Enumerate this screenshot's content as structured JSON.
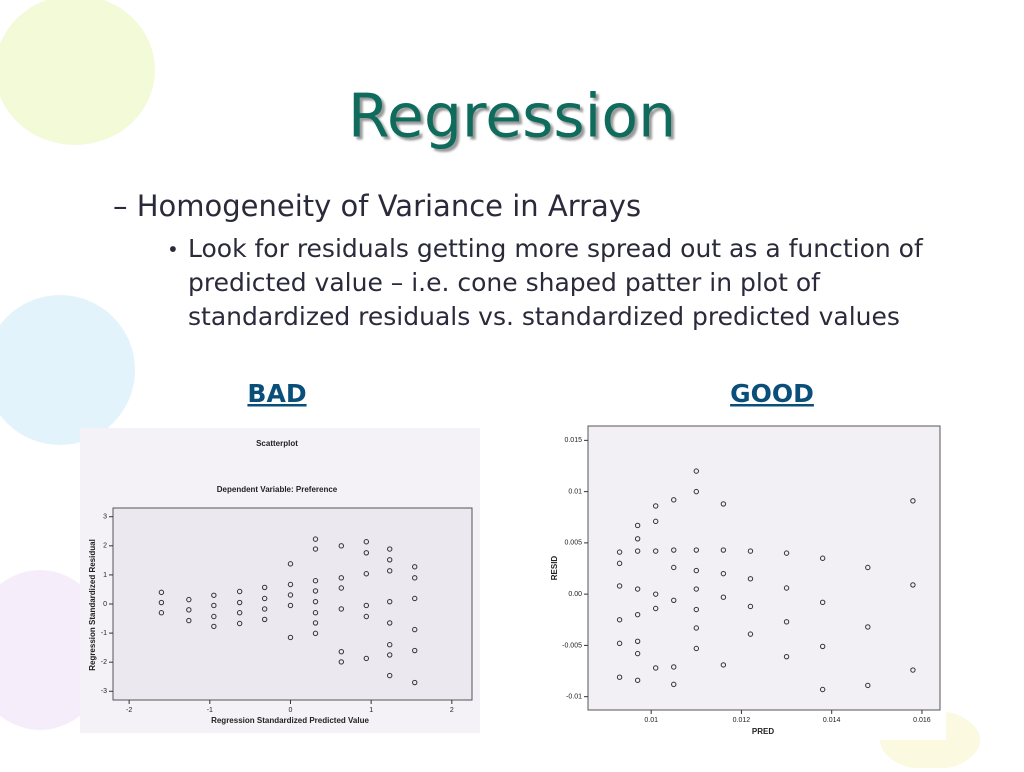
{
  "slide": {
    "title": "Regression",
    "bullet": "– Homogeneity of Variance in Arrays",
    "subbullet": "Look for residuals getting more spread out as a function of predicted value – i.e. cone shaped patter in plot of standardized residuals vs. standardized predicted values",
    "labels": [
      "BAD",
      "GOOD"
    ]
  },
  "chart_data": [
    {
      "type": "scatter",
      "title": "Scatterplot",
      "subtitle": "Dependent Variable: Preference",
      "x_label": "Regression Standardized Predicted Value",
      "y_label": "Regression Standardized Residual",
      "xlim": [
        -2.2,
        2.25
      ],
      "ylim": [
        -3.3,
        3.3
      ],
      "xticks": [
        -2,
        -1,
        0,
        1,
        2
      ],
      "yticks": [
        -3,
        -2,
        -1,
        0,
        1,
        2,
        3
      ],
      "x": [
        -1.6,
        -1.6,
        -1.6,
        -1.26,
        -1.26,
        -1.26,
        -0.95,
        -0.95,
        -0.95,
        -0.95,
        -0.63,
        -0.63,
        -0.63,
        -0.63,
        -0.32,
        -0.32,
        -0.32,
        -0.32,
        0,
        0,
        0,
        0,
        0,
        0.31,
        0.31,
        0.31,
        0.31,
        0.31,
        0.31,
        0.31,
        0.31,
        0.63,
        0.63,
        0.63,
        0.63,
        0.63,
        0.63,
        0.94,
        0.94,
        0.94,
        0.94,
        0.94,
        0.94,
        1.23,
        1.23,
        1.23,
        1.23,
        1.23,
        1.23,
        1.23,
        1.23,
        1.54,
        1.54,
        1.54,
        1.54,
        1.54,
        1.54
      ],
      "values": [
        0.4,
        0.05,
        -0.3,
        0.15,
        -0.2,
        -0.57,
        0.3,
        -0.05,
        -0.43,
        -0.77,
        0.43,
        0.05,
        -0.3,
        -0.67,
        0.57,
        0.19,
        -0.17,
        -0.53,
        1.38,
        0.67,
        0.31,
        -0.05,
        -1.15,
        2.23,
        1.89,
        0.8,
        0.45,
        0.08,
        -0.3,
        -0.65,
        -1.01,
        2.0,
        0.9,
        0.55,
        -0.17,
        -1.64,
        -1.99,
        2.14,
        1.76,
        1.04,
        -0.05,
        -0.43,
        -1.87,
        1.89,
        1.52,
        1.14,
        0.08,
        -0.65,
        -1.4,
        -1.75,
        -2.46,
        1.28,
        0.9,
        0.19,
        -0.88,
        -1.6,
        -2.7
      ],
      "color": "#333333"
    },
    {
      "type": "scatter",
      "x_label": "PRED",
      "y_label": "RESID",
      "xlim": [
        0.0086,
        0.0164
      ],
      "ylim": [
        -0.0113,
        0.0164
      ],
      "xticks": [
        0.01,
        0.012,
        0.014,
        0.016
      ],
      "yticks": [
        -0.01,
        -0.005,
        {
          "value": 0,
          "label": "0.00"
        },
        0.005,
        0.01,
        0.015
      ],
      "x": [
        0.0093,
        0.0093,
        0.0093,
        0.0093,
        0.0093,
        0.0093,
        0.0097,
        0.0097,
        0.0097,
        0.0097,
        0.0097,
        0.0097,
        0.0097,
        0.0097,
        0.0101,
        0.0101,
        0.0101,
        0.0101,
        0.0101,
        0.0101,
        0.0105,
        0.0105,
        0.0105,
        0.0105,
        0.0105,
        0.0105,
        0.011,
        0.011,
        0.011,
        0.011,
        0.011,
        0.011,
        0.011,
        0.011,
        0.0116,
        0.0116,
        0.0116,
        0.0116,
        0.0116,
        0.0122,
        0.0122,
        0.0122,
        0.0122,
        0.013,
        0.013,
        0.013,
        0.013,
        0.0138,
        0.0138,
        0.0138,
        0.0138,
        0.0148,
        0.0148,
        0.0148,
        0.0158,
        0.0158,
        0.0158
      ],
      "values": [
        0.0041,
        0.003,
        0.0008,
        -0.0025,
        -0.0048,
        -0.0081,
        0.0067,
        0.0054,
        0.0042,
        0.0005,
        -0.002,
        -0.0046,
        -0.0058,
        -0.0084,
        0.0086,
        0.0071,
        0.0042,
        0,
        -0.0014,
        -0.0072,
        0.0092,
        0.0043,
        0.0026,
        -0.0006,
        -0.0071,
        -0.0088,
        0.012,
        0.01,
        0.0043,
        0.0023,
        0.0005,
        -0.0015,
        -0.0033,
        -0.0053,
        0.0088,
        0.0043,
        0.002,
        -0.0003,
        -0.0069,
        0.0042,
        0.0015,
        -0.0012,
        -0.0039,
        0.004,
        0.0006,
        -0.0027,
        -0.0061,
        0.0035,
        -0.0008,
        -0.0051,
        -0.0093,
        0.0026,
        -0.0032,
        -0.0089,
        0.0091,
        0.0009,
        -0.0074
      ],
      "color": "#333333"
    }
  ]
}
